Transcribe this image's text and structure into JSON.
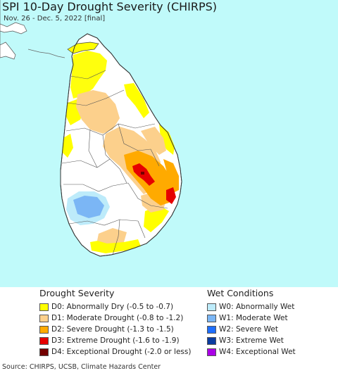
{
  "map": {
    "title": "SPI 10-Day Drought Severity (CHIRPS)",
    "subtitle": "Nov. 26 - Dec. 5, 2022 [final]",
    "ocean_color": "#c0fafa",
    "land_color": "#ffffff"
  },
  "legend": {
    "drought": {
      "title": "Drought Severity",
      "items": [
        {
          "label": "D0: Abnormally Dry (-0.5 to -0.7)",
          "color": "#ffff00"
        },
        {
          "label": "D1: Moderate Drought (-0.8 to -1.2)",
          "color": "#fcd08c"
        },
        {
          "label": "D2: Severe Drought (-1.3 to -1.5)",
          "color": "#ffaa00"
        },
        {
          "label": "D3: Extreme Drought (-1.6 to -1.9)",
          "color": "#e60000"
        },
        {
          "label": "D4: Exceptional Drought (-2.0 or less)",
          "color": "#730000"
        }
      ]
    },
    "wet": {
      "title": "Wet Conditions",
      "items": [
        {
          "label": "W0: Abnormally Wet",
          "color": "#bdebfa"
        },
        {
          "label": "W1: Moderate Wet",
          "color": "#7bb6f5"
        },
        {
          "label": "W2: Severe Wet",
          "color": "#1e6eff"
        },
        {
          "label": "W3: Extreme Wet",
          "color": "#0a3ca0"
        },
        {
          "label": "W4: Exceptional Wet",
          "color": "#aa00e6"
        }
      ]
    }
  },
  "footer": {
    "source": "Source: CHIRPS, UCSB, Climate Hazards Center"
  }
}
